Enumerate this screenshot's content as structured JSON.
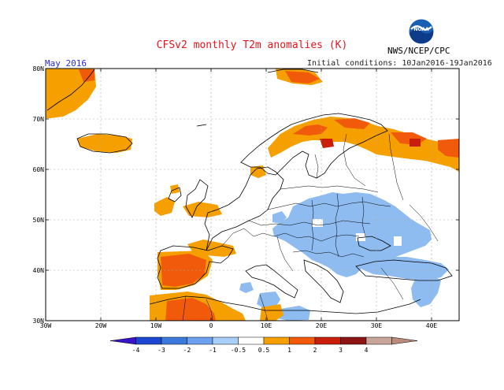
{
  "header": {
    "title": "CFSv2 monthly T2m anomalies (K)",
    "period": "May 2016",
    "initial_conditions": "Initial conditions: 10Jan2016-19Jan2016",
    "agency": "NWS/NCEP/CPC",
    "logo_text": "NOAA"
  },
  "map": {
    "lat_labels": [
      "80N",
      "70N",
      "60N",
      "50N",
      "40N",
      "30N"
    ],
    "lon_labels": [
      "30W",
      "20W",
      "10W",
      "0",
      "10E",
      "20E",
      "30E",
      "40E"
    ],
    "lon_range": [
      -30,
      45
    ],
    "lat_range": [
      30,
      80
    ]
  },
  "legend": {
    "labels": [
      "-4",
      "-3",
      "-2",
      "-1",
      "-0.5",
      "0.5",
      "1",
      "2",
      "3",
      "4"
    ],
    "colors": [
      "#3c14c8",
      "#1e46d2",
      "#3a78dc",
      "#6ea0f0",
      "#a8cff8",
      "#ffffff",
      "#f5a000",
      "#f05a0a",
      "#c81e0a",
      "#8c1414",
      "#c8a59b",
      "#b98c7d"
    ]
  },
  "colors": {
    "warm_light": "#f5a000",
    "warm": "#f05a0a",
    "warm_dark": "#c81e0a",
    "cold": "#8fbcf0",
    "title_red": "#e8141c",
    "period_blue": "#2a2ad4"
  }
}
